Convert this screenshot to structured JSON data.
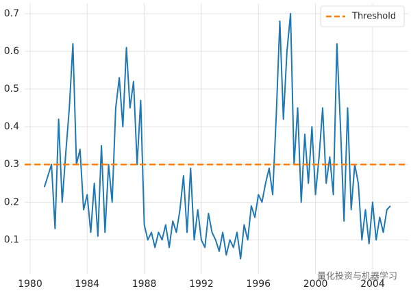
{
  "chart_data": {
    "type": "line",
    "x": [
      1981,
      1981.25,
      1981.5,
      1981.75,
      1982,
      1982.25,
      1982.5,
      1982.75,
      1983,
      1983.25,
      1983.5,
      1983.75,
      1984,
      1984.25,
      1984.5,
      1984.75,
      1985,
      1985.25,
      1985.5,
      1985.75,
      1986,
      1986.25,
      1986.5,
      1986.75,
      1987,
      1987.25,
      1987.5,
      1987.75,
      1988,
      1988.25,
      1988.5,
      1988.75,
      1989,
      1989.25,
      1989.5,
      1989.75,
      1990,
      1990.25,
      1990.5,
      1990.75,
      1991,
      1991.25,
      1991.5,
      1991.75,
      1992,
      1992.25,
      1992.5,
      1992.75,
      1993,
      1993.25,
      1993.5,
      1993.75,
      1994,
      1994.25,
      1994.5,
      1994.75,
      1995,
      1995.25,
      1995.5,
      1995.75,
      1996,
      1996.25,
      1996.5,
      1996.75,
      1997,
      1997.25,
      1997.5,
      1997.75,
      1998,
      1998.25,
      1998.5,
      1998.75,
      1999,
      1999.25,
      1999.5,
      1999.75,
      2000,
      2000.25,
      2000.5,
      2000.75,
      2001,
      2001.25,
      2001.5,
      2001.75,
      2002,
      2002.25,
      2002.5,
      2002.75,
      2003,
      2003.25,
      2003.5,
      2003.75,
      2004,
      2004.25,
      2004.5,
      2004.75,
      2005,
      2005.25
    ],
    "series": [
      {
        "color": "#1f77b4",
        "values": [
          0.24,
          0.27,
          0.3,
          0.13,
          0.42,
          0.2,
          0.33,
          0.45,
          0.62,
          0.3,
          0.34,
          0.18,
          0.22,
          0.12,
          0.25,
          0.11,
          0.35,
          0.12,
          0.3,
          0.2,
          0.45,
          0.53,
          0.4,
          0.61,
          0.45,
          0.52,
          0.3,
          0.47,
          0.14,
          0.1,
          0.12,
          0.08,
          0.12,
          0.1,
          0.14,
          0.08,
          0.15,
          0.12,
          0.18,
          0.27,
          0.12,
          0.29,
          0.1,
          0.18,
          0.1,
          0.08,
          0.17,
          0.12,
          0.1,
          0.07,
          0.12,
          0.06,
          0.1,
          0.08,
          0.12,
          0.05,
          0.14,
          0.1,
          0.19,
          0.16,
          0.22,
          0.2,
          0.25,
          0.29,
          0.22,
          0.43,
          0.68,
          0.42,
          0.6,
          0.7,
          0.3,
          0.45,
          0.2,
          0.38,
          0.25,
          0.4,
          0.22,
          0.32,
          0.45,
          0.25,
          0.32,
          0.22,
          0.62,
          0.4,
          0.15,
          0.45,
          0.18,
          0.3,
          0.25,
          0.1,
          0.18,
          0.09,
          0.2,
          0.1,
          0.16,
          0.12,
          0.18,
          0.19
        ]
      }
    ],
    "hlines": [
      {
        "name": "Threshold",
        "value": 0.3,
        "color": "#ff7f0e"
      }
    ],
    "xlim": [
      1979.62,
      2006.5
    ],
    "xticks": [
      1980,
      1984,
      1988,
      1992,
      1996,
      2000,
      2004
    ],
    "ylim": [
      0.01,
      0.727
    ],
    "yticks": [
      0.1,
      0.2,
      0.3,
      0.4,
      0.5,
      0.6,
      0.7
    ],
    "grid": true,
    "legend": "upper right",
    "watermark": "量化投资与机器学习"
  }
}
